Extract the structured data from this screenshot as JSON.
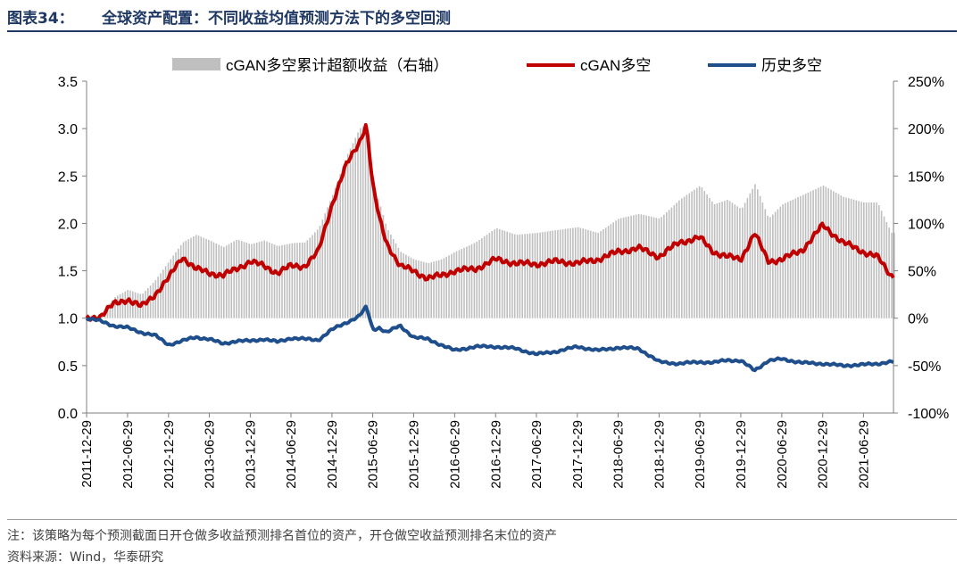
{
  "header": {
    "label": "图表34：",
    "title": "全球资产配置：不同收益均值预测方法下的多空回测"
  },
  "footer": {
    "note": "注：该策略为每个预测截面日开仓做多收益预测排名首位的资产，开仓做空收益预测排名末位的资产",
    "source": "资料来源：Wind，华泰研究"
  },
  "colors": {
    "header": "#1f3864",
    "bars": "#bfbfbf",
    "cgan": "#c00000",
    "hist": "#1f4e8c",
    "axis": "#7f7f7f"
  },
  "chart_data": {
    "type": "line",
    "x_ticks": [
      "2011-12-29",
      "2012-06-29",
      "2012-12-29",
      "2013-06-29",
      "2013-12-29",
      "2014-06-29",
      "2014-12-29",
      "2015-06-29",
      "2015-12-29",
      "2016-06-29",
      "2016-12-29",
      "2017-06-29",
      "2017-12-29",
      "2018-06-29",
      "2018-12-29",
      "2019-06-29",
      "2019-12-29",
      "2020-06-29",
      "2020-12-29",
      "2021-06-29"
    ],
    "y_left": {
      "ticks": [
        "3.5",
        "3.0",
        "2.5",
        "2.0",
        "1.5",
        "1.0",
        "0.5",
        "0.0"
      ],
      "range": [
        0,
        3.5
      ]
    },
    "y_right": {
      "ticks": [
        "250%",
        "200%",
        "150%",
        "100%",
        "50%",
        "0%",
        "-50%",
        "-100%"
      ],
      "range": [
        -1.0,
        2.5
      ]
    },
    "grid": false,
    "legend_position": "top",
    "series": [
      {
        "name": "cGAN多空累计超额收益（右轴）",
        "type": "bar",
        "axis": "right",
        "x": [
          "2011-12-29",
          "2012-02-29",
          "2012-04-29",
          "2012-06-29",
          "2012-08-29",
          "2012-10-29",
          "2012-12-29",
          "2013-02-28",
          "2013-04-29",
          "2013-06-29",
          "2013-08-29",
          "2013-10-29",
          "2013-12-29",
          "2014-02-28",
          "2014-04-29",
          "2014-06-29",
          "2014-08-29",
          "2014-10-29",
          "2014-12-29",
          "2015-02-28",
          "2015-04-29",
          "2015-06-01",
          "2015-06-29",
          "2015-07-29",
          "2015-08-29",
          "2015-10-29",
          "2015-12-29",
          "2016-02-29",
          "2016-04-29",
          "2016-06-29",
          "2016-09-29",
          "2016-12-29",
          "2017-03-29",
          "2017-06-29",
          "2017-09-29",
          "2017-12-29",
          "2018-03-29",
          "2018-06-29",
          "2018-09-29",
          "2018-12-29",
          "2019-03-29",
          "2019-06-29",
          "2019-08-29",
          "2019-10-29",
          "2019-12-29",
          "2020-02-29",
          "2020-04-29",
          "2020-06-29",
          "2020-09-29",
          "2020-12-29",
          "2021-03-29",
          "2021-06-29",
          "2021-08-29",
          "2021-10-29"
        ],
        "values": [
          0.0,
          0.03,
          0.22,
          0.3,
          0.25,
          0.4,
          0.6,
          0.8,
          0.88,
          0.82,
          0.75,
          0.83,
          0.78,
          0.82,
          0.76,
          0.79,
          0.8,
          0.95,
          1.3,
          1.7,
          2.0,
          2.05,
          1.4,
          1.2,
          0.95,
          0.7,
          0.62,
          0.58,
          0.62,
          0.7,
          0.8,
          0.95,
          0.88,
          0.9,
          0.93,
          0.96,
          0.9,
          1.05,
          1.1,
          1.05,
          1.25,
          1.4,
          1.2,
          1.25,
          1.15,
          1.42,
          1.05,
          1.2,
          1.3,
          1.4,
          1.28,
          1.22,
          1.22,
          0.9
        ]
      },
      {
        "name": "cGAN多空",
        "axis": "left",
        "x": [
          "2011-12-29",
          "2012-02-29",
          "2012-04-29",
          "2012-06-29",
          "2012-08-29",
          "2012-10-29",
          "2012-12-29",
          "2013-02-28",
          "2013-04-29",
          "2013-06-29",
          "2013-08-29",
          "2013-10-29",
          "2013-12-29",
          "2014-02-28",
          "2014-04-29",
          "2014-06-29",
          "2014-08-29",
          "2014-10-29",
          "2014-12-29",
          "2015-02-28",
          "2015-04-29",
          "2015-06-01",
          "2015-06-29",
          "2015-07-29",
          "2015-08-29",
          "2015-10-29",
          "2015-12-29",
          "2016-02-29",
          "2016-04-29",
          "2016-06-29",
          "2016-09-29",
          "2016-12-29",
          "2017-03-29",
          "2017-06-29",
          "2017-09-29",
          "2017-12-29",
          "2018-03-29",
          "2018-06-29",
          "2018-09-29",
          "2018-12-29",
          "2019-03-29",
          "2019-06-29",
          "2019-08-29",
          "2019-10-29",
          "2019-12-29",
          "2020-02-29",
          "2020-04-29",
          "2020-06-29",
          "2020-09-29",
          "2020-12-29",
          "2021-03-29",
          "2021-06-29",
          "2021-08-29",
          "2021-10-29"
        ],
        "values": [
          1.0,
          1.02,
          1.15,
          1.2,
          1.12,
          1.25,
          1.42,
          1.65,
          1.52,
          1.48,
          1.45,
          1.52,
          1.6,
          1.55,
          1.48,
          1.55,
          1.55,
          1.7,
          2.2,
          2.6,
          2.85,
          3.05,
          2.4,
          2.05,
          1.8,
          1.55,
          1.5,
          1.42,
          1.45,
          1.5,
          1.52,
          1.62,
          1.58,
          1.57,
          1.6,
          1.58,
          1.62,
          1.7,
          1.74,
          1.65,
          1.8,
          1.85,
          1.7,
          1.65,
          1.62,
          1.9,
          1.6,
          1.62,
          1.72,
          1.98,
          1.8,
          1.7,
          1.65,
          1.45
        ]
      },
      {
        "name": "历史多空",
        "axis": "left",
        "x": [
          "2011-12-29",
          "2012-02-29",
          "2012-04-29",
          "2012-06-29",
          "2012-08-29",
          "2012-10-29",
          "2012-12-29",
          "2013-02-28",
          "2013-04-29",
          "2013-06-29",
          "2013-08-29",
          "2013-10-29",
          "2013-12-29",
          "2014-02-28",
          "2014-04-29",
          "2014-06-29",
          "2014-08-29",
          "2014-10-29",
          "2014-12-29",
          "2015-02-28",
          "2015-04-29",
          "2015-06-01",
          "2015-06-29",
          "2015-07-29",
          "2015-08-29",
          "2015-10-29",
          "2015-12-29",
          "2016-02-29",
          "2016-04-29",
          "2016-06-29",
          "2016-09-29",
          "2016-12-29",
          "2017-03-29",
          "2017-06-29",
          "2017-09-29",
          "2017-12-29",
          "2018-03-29",
          "2018-06-29",
          "2018-09-29",
          "2018-12-29",
          "2019-03-29",
          "2019-06-29",
          "2019-08-29",
          "2019-10-29",
          "2019-12-29",
          "2020-02-29",
          "2020-04-29",
          "2020-06-29",
          "2020-09-29",
          "2020-12-29",
          "2021-03-29",
          "2021-06-29",
          "2021-08-29",
          "2021-10-29"
        ],
        "values": [
          1.0,
          0.97,
          0.92,
          0.9,
          0.85,
          0.82,
          0.72,
          0.76,
          0.8,
          0.78,
          0.73,
          0.76,
          0.76,
          0.78,
          0.75,
          0.79,
          0.78,
          0.77,
          0.88,
          0.95,
          1.02,
          1.12,
          0.88,
          0.9,
          0.85,
          0.92,
          0.8,
          0.78,
          0.72,
          0.66,
          0.7,
          0.7,
          0.68,
          0.62,
          0.65,
          0.7,
          0.66,
          0.69,
          0.68,
          0.54,
          0.52,
          0.54,
          0.53,
          0.56,
          0.55,
          0.45,
          0.55,
          0.57,
          0.53,
          0.52,
          0.5,
          0.51,
          0.52,
          0.54
        ]
      }
    ]
  }
}
